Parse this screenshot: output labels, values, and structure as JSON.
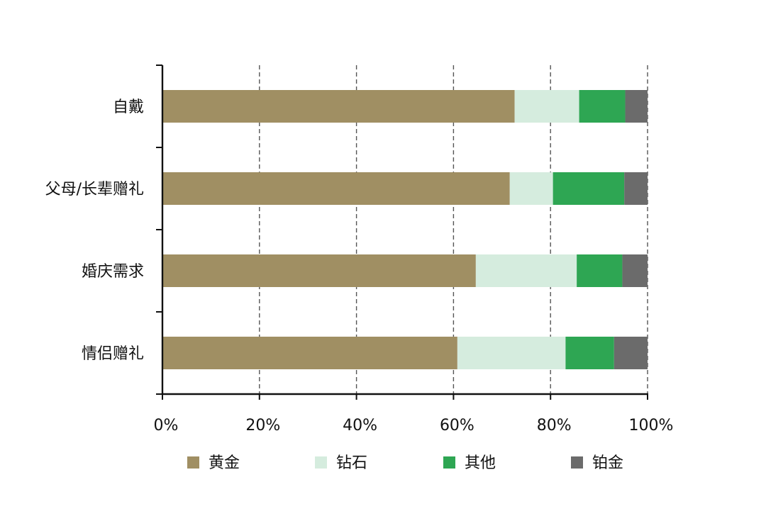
{
  "chart_data": {
    "type": "bar",
    "orientation": "horizontal",
    "stacked": true,
    "title": "",
    "xlabel": "",
    "ylabel": "",
    "categories": [
      "自戴",
      "父母/长辈赠礼",
      "婚庆需求",
      "情侣赠礼"
    ],
    "series": [
      {
        "name": "黄金",
        "values": [
          72.6,
          71.6,
          64.6,
          60.8
        ],
        "color": "#a08f63"
      },
      {
        "name": "钻石",
        "values": [
          13.3,
          8.9,
          20.8,
          22.3
        ],
        "color": "#d5ecde"
      },
      {
        "name": "其他",
        "values": [
          9.5,
          14.7,
          9.4,
          10.0
        ],
        "color": "#2ea653"
      },
      {
        "name": "铂金",
        "values": [
          4.6,
          4.8,
          5.2,
          6.9
        ],
        "color": "#6b6b6b"
      }
    ],
    "xlim": [
      0,
      100
    ],
    "xticks": [
      "0%",
      "20%",
      "40%",
      "60%",
      "80%",
      "100%"
    ],
    "grid": "vertical dashed",
    "legend_position": "bottom"
  }
}
